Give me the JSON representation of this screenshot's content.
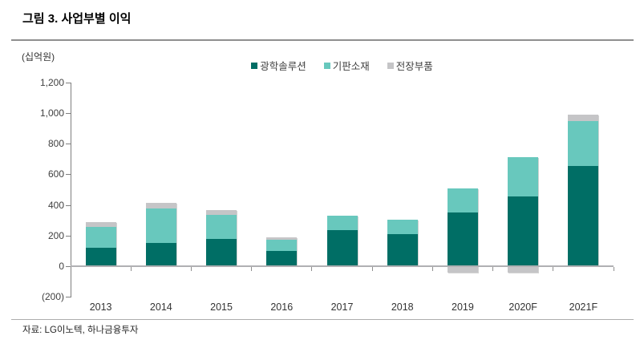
{
  "header": {
    "title": "그림 3. 사업부별 이익"
  },
  "footer": {
    "source": "자료: LG이노텍, 하나금융투자"
  },
  "colors": {
    "series_dark_teal": "#006E65",
    "series_light_teal": "#68C8BD",
    "series_gray": "#C5C5C7",
    "axis_line": "#7f7f7f",
    "zero_line": "#b0b0b3",
    "text": "#404040"
  },
  "chart_data": {
    "type": "bar",
    "stacked": true,
    "title": "그림 3. 사업부별 이익",
    "unit_label": "(십억원)",
    "xlabel": "",
    "ylabel": "십억원",
    "categories": [
      "2013",
      "2014",
      "2015",
      "2016",
      "2017",
      "2018",
      "2019",
      "2020F",
      "2021F"
    ],
    "series": [
      {
        "name": "광학솔루션",
        "color": "#006E65",
        "values": [
          120,
          150,
          180,
          100,
          235,
          210,
          350,
          455,
          655
        ]
      },
      {
        "name": "기판소재",
        "color": "#68C8BD",
        "values": [
          135,
          225,
          155,
          70,
          95,
          95,
          160,
          255,
          295
        ]
      },
      {
        "name": "전장부품",
        "color": "#C5C5C7",
        "values": [
          35,
          40,
          30,
          20,
          0,
          0,
          -45,
          -45,
          40
        ]
      }
    ],
    "totals": [
      290,
      415,
      365,
      190,
      330,
      305,
      465,
      665,
      990
    ],
    "ylim": [
      -200,
      1200
    ],
    "y_ticks": [
      {
        "value": 1200,
        "label": "1,200"
      },
      {
        "value": 1000,
        "label": "1,000"
      },
      {
        "value": 800,
        "label": "800"
      },
      {
        "value": 600,
        "label": "600"
      },
      {
        "value": 400,
        "label": "400"
      },
      {
        "value": 200,
        "label": "200"
      },
      {
        "value": 0,
        "label": "0"
      },
      {
        "value": -200,
        "label": "(200)"
      }
    ],
    "grid": false,
    "legend_position": "top-center"
  }
}
